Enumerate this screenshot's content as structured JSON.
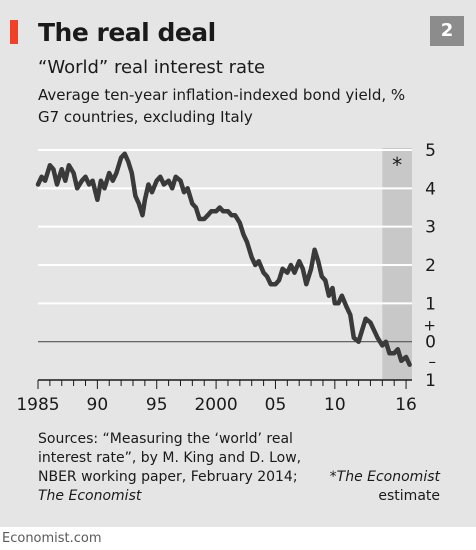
{
  "header": {
    "title": "The real deal",
    "chart_number": "2",
    "subtitle": "“World” real interest rate",
    "description_line1": "Average ten-year inflation-indexed bond yield, %",
    "description_line2": "G7 countries, excluding Italy"
  },
  "footer": {
    "source_line1": "Sources: “Measuring the ‘world’ real",
    "source_line2": "interest rate”, by M. King and D. Low,",
    "source_line3": "NBER working paper, February 2014;",
    "source_line4": "The Economist",
    "footnote_line1": "*The Economist",
    "footnote_line2": "estimate",
    "brand": "Economist.com"
  },
  "colors": {
    "background": "#e5e5e5",
    "accent": "#ef4028",
    "line": "#3a3a3a",
    "shading": "#c8c8c8",
    "badge": "#8c8c8c"
  },
  "chart_data": {
    "type": "line",
    "title": "“World” real interest rate",
    "xlim": [
      1985,
      2016.5
    ],
    "ylim": [
      -1,
      5
    ],
    "x_ticks": [
      1985,
      1990,
      1995,
      2000,
      2005,
      2010,
      2016
    ],
    "x_tick_labels": [
      "1985",
      "90",
      "95",
      "2000",
      "05",
      "10",
      "16"
    ],
    "y_ticks": [
      5,
      4,
      3,
      2,
      1,
      0,
      -1
    ],
    "y_tick_labels": [
      "5",
      "4",
      "3",
      "2",
      "1",
      "0",
      "1"
    ],
    "zero_line_labels": {
      "above": "+",
      "below": "–"
    },
    "shaded_region": {
      "x": [
        2014,
        2016.5
      ],
      "label": "*"
    },
    "grid": true,
    "series": [
      {
        "x": [
          1985.0,
          1985.3,
          1985.6,
          1986.0,
          1986.3,
          1986.6,
          1987.0,
          1987.3,
          1987.6,
          1988.0,
          1988.3,
          1988.7,
          1989.0,
          1989.3,
          1989.6,
          1990.0,
          1990.3,
          1990.6,
          1991.0,
          1991.3,
          1991.6,
          1992.0,
          1992.3,
          1992.6,
          1992.9,
          1993.2,
          1993.5,
          1993.8,
          1994.0,
          1994.3,
          1994.6,
          1995.0,
          1995.3,
          1995.6,
          1996.0,
          1996.3,
          1996.6,
          1997.0,
          1997.3,
          1997.6,
          1998.0,
          1998.3,
          1998.6,
          1999.0,
          1999.3,
          1999.6,
          2000.0,
          2000.3,
          2000.6,
          2001.0,
          2001.3,
          2001.6,
          2002.0,
          2002.3,
          2002.6,
          2003.0,
          2003.3,
          2003.6,
          2004.0,
          2004.3,
          2004.6,
          2005.0,
          2005.3,
          2005.6,
          2006.0,
          2006.3,
          2006.6,
          2007.0,
          2007.3,
          2007.6,
          2008.0,
          2008.3,
          2008.6,
          2008.9,
          2009.2,
          2009.5,
          2009.8,
          2010.0,
          2010.3,
          2010.6,
          2011.0,
          2011.3,
          2011.6,
          2012.0,
          2012.3,
          2012.6,
          2013.0,
          2013.3,
          2013.6,
          2014.0,
          2014.3,
          2014.6,
          2015.0,
          2015.3,
          2015.6,
          2016.0,
          2016.3
        ],
        "y": [
          4.1,
          4.3,
          4.2,
          4.6,
          4.5,
          4.1,
          4.5,
          4.2,
          4.6,
          4.4,
          4.0,
          4.2,
          4.3,
          4.1,
          4.2,
          3.7,
          4.2,
          4.0,
          4.4,
          4.2,
          4.4,
          4.8,
          4.9,
          4.7,
          4.4,
          3.8,
          3.6,
          3.3,
          3.7,
          4.1,
          3.9,
          4.2,
          4.3,
          4.1,
          4.2,
          4.0,
          4.3,
          4.2,
          3.9,
          4.0,
          3.6,
          3.5,
          3.2,
          3.2,
          3.3,
          3.4,
          3.4,
          3.5,
          3.4,
          3.4,
          3.3,
          3.3,
          3.1,
          2.8,
          2.6,
          2.2,
          2.0,
          2.1,
          1.8,
          1.7,
          1.5,
          1.5,
          1.6,
          1.9,
          1.8,
          2.0,
          1.8,
          2.1,
          1.9,
          1.5,
          1.9,
          2.4,
          2.1,
          1.7,
          1.6,
          1.2,
          1.4,
          1.0,
          1.0,
          1.2,
          0.9,
          0.7,
          0.1,
          0.0,
          0.3,
          0.6,
          0.5,
          0.3,
          0.1,
          -0.1,
          0.0,
          -0.3,
          -0.3,
          -0.2,
          -0.5,
          -0.4,
          -0.6
        ]
      }
    ]
  }
}
